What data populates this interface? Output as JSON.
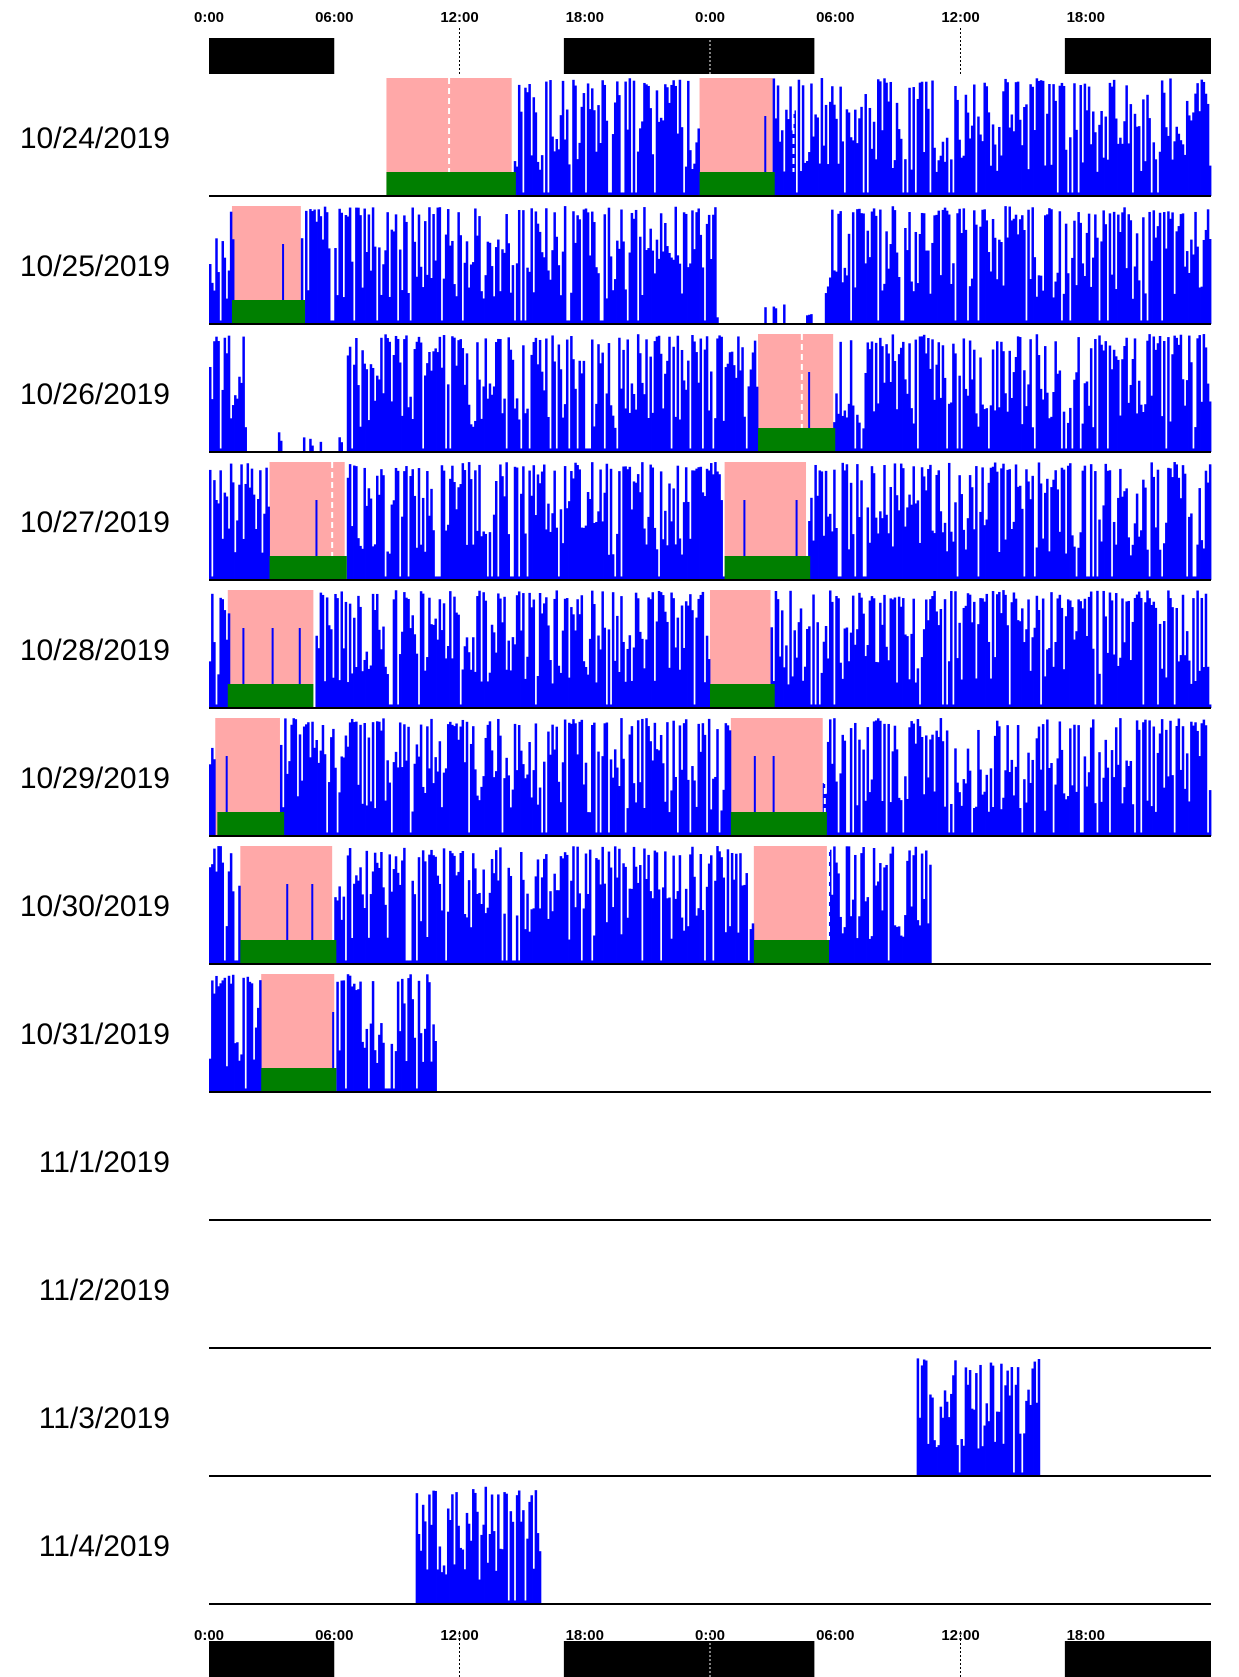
{
  "chart_data": {
    "type": "actogram",
    "double_plotted": true,
    "x_unit": "hours (two consecutive days per row)",
    "x_ticks": [
      "0:00",
      "06:00",
      "12:00",
      "18:00",
      "0:00",
      "06:00",
      "12:00",
      "18:00"
    ],
    "x_tick_hours": [
      0,
      6,
      12,
      18,
      24,
      30,
      36,
      42
    ],
    "xlim": [
      0,
      48
    ],
    "light_dark_bar": {
      "dark_periods_hours": [
        [
          0,
          6
        ],
        [
          17,
          29
        ],
        [
          41,
          48
        ]
      ],
      "colors": {
        "dark": "#000000",
        "light": "#ffffff"
      }
    },
    "colors": {
      "activity": "#0000ff",
      "rest_interval": "#ffa8a8",
      "sleep_bar": "#007f00",
      "baseline": "#000000",
      "marker": "#ffffff"
    },
    "rows": [
      {
        "date": "10/24/2019",
        "recording_start_hour": 8.5,
        "recording_end_hour": 48,
        "rest": [
          [
            8.5,
            14.5
          ],
          [
            23.5,
            27
          ]
        ],
        "sleep": [
          [
            8.5,
            14.7
          ],
          [
            23.5,
            27.1
          ]
        ],
        "markers": [
          11.5,
          28
        ],
        "spikes": [
          26.6
        ]
      },
      {
        "date": "10/25/2019",
        "recording_start_hour": 0,
        "recording_end_hour": 48,
        "rest": [
          [
            1.1,
            4.4
          ],
          [
            32.5,
            32.5
          ]
        ],
        "sleep": [
          [
            1.1,
            4.6
          ]
        ],
        "markers": [],
        "spikes": [
          3.5
        ],
        "quiet": [
          [
            24.3,
            29.5
          ]
        ]
      },
      {
        "date": "10/26/2019",
        "recording_start_hour": 0,
        "recording_end_hour": 48,
        "rest": [
          [
            26.3,
            29.9
          ]
        ],
        "sleep": [
          [
            26.3,
            30.0
          ]
        ],
        "markers": [
          28.4
        ],
        "spikes": [
          28.7
        ],
        "quiet": [
          [
            1.8,
            6.5
          ]
        ]
      },
      {
        "date": "10/27/2019",
        "recording_start_hour": 0,
        "recording_end_hour": 48,
        "rest": [
          [
            2.9,
            6.5
          ],
          [
            24.7,
            28.6
          ]
        ],
        "sleep": [
          [
            2.9,
            6.6
          ],
          [
            24.7,
            28.8
          ]
        ],
        "markers": [
          5.9
        ],
        "spikes": [
          5.1,
          25.6,
          28.1
        ]
      },
      {
        "date": "10/28/2019",
        "recording_start_hour": 0,
        "recording_end_hour": 48,
        "rest": [
          [
            0.9,
            5.0
          ],
          [
            24.0,
            26.9
          ]
        ],
        "sleep": [
          [
            0.9,
            5.0
          ],
          [
            24.0,
            27.1
          ]
        ],
        "markers": [],
        "spikes": [
          1.6,
          3.0,
          4.3
        ]
      },
      {
        "date": "10/29/2019",
        "recording_start_hour": 0,
        "recording_end_hour": 48,
        "rest": [
          [
            0.3,
            3.4
          ],
          [
            25.0,
            29.4
          ]
        ],
        "sleep": [
          [
            0.4,
            3.6
          ],
          [
            25.0,
            29.6
          ]
        ],
        "markers": [
          29.5
        ],
        "spikes": [
          0.8,
          27.0,
          26.1
        ]
      },
      {
        "date": "10/30/2019",
        "recording_start_hour": 0,
        "recording_end_hour": 34.6,
        "rest": [
          [
            1.5,
            5.9
          ],
          [
            26.1,
            29.6
          ]
        ],
        "sleep": [
          [
            1.5,
            6.1
          ],
          [
            26.1,
            29.7
          ]
        ],
        "markers": [
          29.7
        ],
        "spikes": [
          3.7,
          4.9
        ]
      },
      {
        "date": "10/31/2019",
        "recording_start_hour": 0,
        "recording_end_hour": 10.8,
        "rest": [
          [
            2.5,
            6.0
          ]
        ],
        "sleep": [
          [
            2.5,
            6.1
          ]
        ],
        "markers": [],
        "spikes": [
          5.9
        ]
      },
      {
        "date": "11/1/2019",
        "recording_start_hour": null,
        "recording_end_hour": null,
        "rest": [],
        "sleep": [],
        "markers": [],
        "spikes": []
      },
      {
        "date": "11/2/2019",
        "recording_start_hour": null,
        "recording_end_hour": null,
        "rest": [],
        "sleep": [],
        "markers": [],
        "spikes": []
      },
      {
        "date": "11/3/2019",
        "recording_start_hour": 33.9,
        "recording_end_hour": 39.8,
        "rest": [],
        "sleep": [],
        "markers": [],
        "spikes": []
      },
      {
        "date": "11/4/2019",
        "recording_start_hour": 9.9,
        "recording_end_hour": 15.8,
        "rest": [],
        "sleep": [],
        "markers": [],
        "spikes": []
      }
    ]
  }
}
